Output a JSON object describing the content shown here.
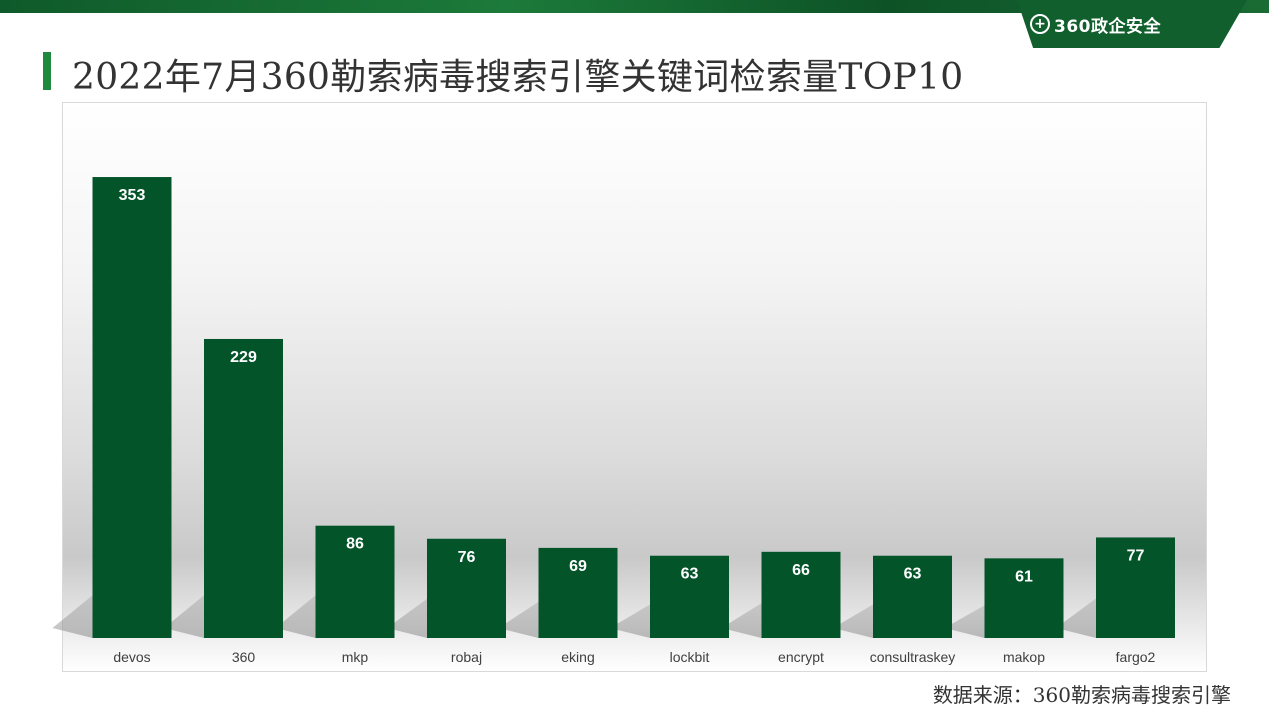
{
  "header": {
    "logo_text": "360政企安全",
    "title": "2022年7月360勒索病毒搜索引擎关键词检索量TOP10",
    "accent_color": "#1f8a3e",
    "band_color": "#125f2e"
  },
  "chart_data": {
    "type": "bar",
    "title": "",
    "xlabel": "",
    "ylabel": "",
    "categories": [
      "devos",
      "360",
      "mkp",
      "robaj",
      "eking",
      "lockbit",
      "encrypt",
      "consultraskey",
      "makop",
      "fargo2"
    ],
    "values": [
      353,
      229,
      86,
      76,
      69,
      63,
      66,
      63,
      61,
      77
    ],
    "ylim": [
      0,
      412
    ],
    "grid": false,
    "legend": "none",
    "bar_color": "#04542a",
    "label_color": "#ffffff"
  },
  "footer": {
    "source": "数据来源：360勒索病毒搜索引擎"
  }
}
